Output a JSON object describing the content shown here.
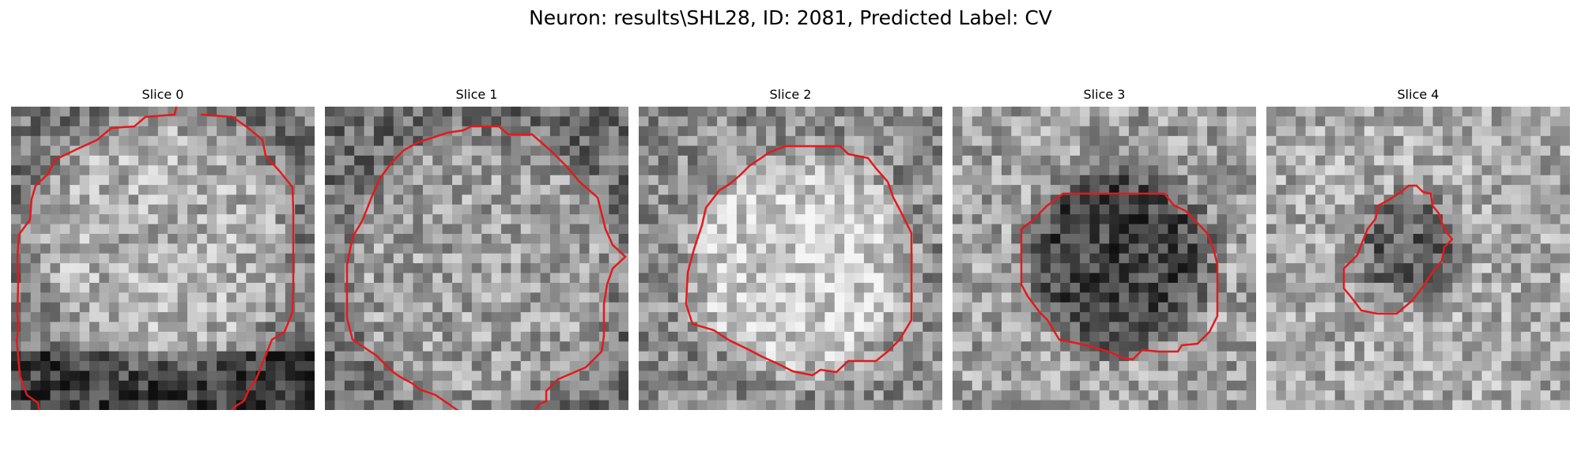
{
  "figure": {
    "title": "Neuron: results\\SHL28, ID: 2081, Predicted Label: CV"
  },
  "slices": [
    {
      "title": "Slice 0",
      "contour_color": "#e31a1c",
      "texture": {
        "center": [
          0.5,
          0.45
        ],
        "radius": 0.42,
        "inside": 175,
        "outside": 120,
        "dark_bottom": true,
        "seed": 11
      }
    },
    {
      "title": "Slice 1",
      "contour_color": "#e31a1c",
      "texture": {
        "center": [
          0.52,
          0.55
        ],
        "radius": 0.45,
        "inside": 160,
        "outside": 110,
        "dark_bottom": false,
        "seed": 23
      }
    },
    {
      "title": "Slice 2",
      "contour_color": "#e31a1c",
      "texture": {
        "center": [
          0.53,
          0.52
        ],
        "radius": 0.36,
        "inside": 205,
        "outside": 140,
        "dark_bottom": false,
        "seed": 37
      }
    },
    {
      "title": "Slice 3",
      "contour_color": "#e31a1c",
      "texture": {
        "center": [
          0.55,
          0.5
        ],
        "radius": 0.3,
        "inside": 70,
        "outside": 160,
        "dark_bottom": false,
        "seed": 41
      }
    },
    {
      "title": "Slice 4",
      "contour_color": "#e31a1c",
      "texture": {
        "center": [
          0.47,
          0.47
        ],
        "radius": 0.17,
        "inside": 95,
        "outside": 170,
        "dark_bottom": false,
        "seed": 53
      }
    }
  ]
}
